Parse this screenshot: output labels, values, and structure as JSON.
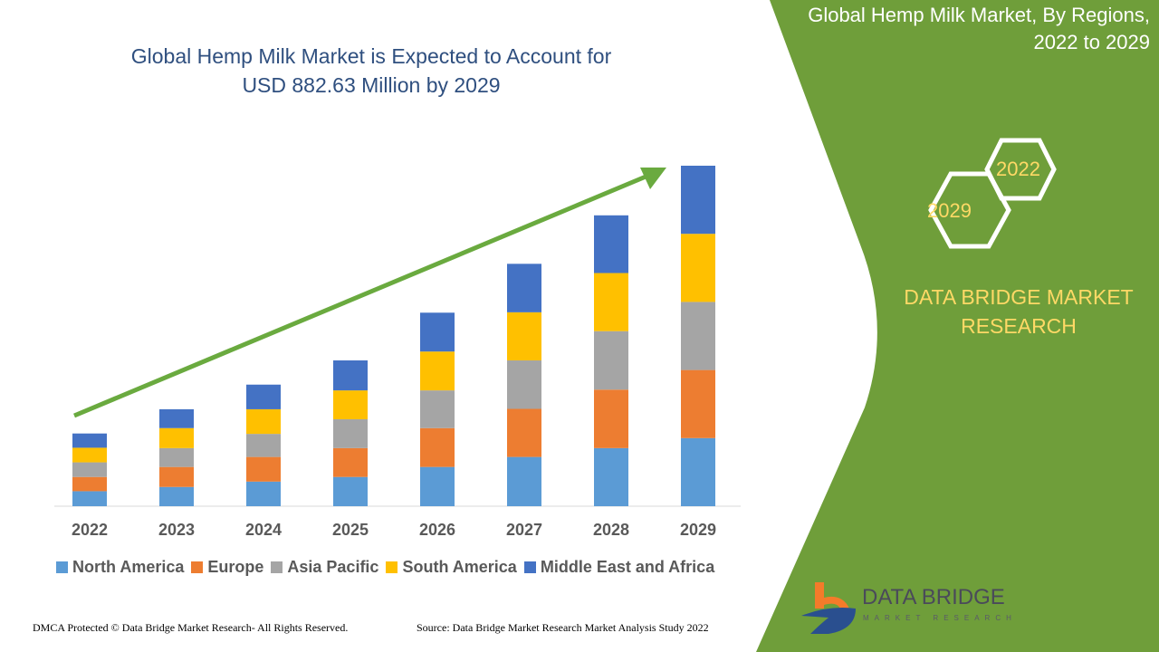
{
  "header": {
    "title_line1": "Global Hemp Milk Market is Expected to Account for",
    "title_line2": "USD 882.63 Million by 2029"
  },
  "side_panel": {
    "title_line1": "Global Hemp Milk Market, By Regions,",
    "title_line2": "2022 to 2029",
    "hex_a": "2022",
    "hex_b": "2029",
    "brand_line1": "DATA BRIDGE MARKET",
    "brand_line2": "RESEARCH",
    "logo": "DATA BRIDGE",
    "logo_sub": "MARKET RESEARCH"
  },
  "footer": {
    "left": "DMCA Protected © Data Bridge Market Research- All Rights Reserved.",
    "right": "Source: Data Bridge Market Research Market Analysis Study 2022"
  },
  "colors": {
    "panel": "#6f9e3a",
    "arrow": "#6aaa3f",
    "title": "#2f4f7f",
    "brand_text": "#ffd966"
  },
  "chart_data": {
    "type": "bar",
    "stacked": true,
    "title": "Global Hemp Milk Market is Expected to Account for USD 882.63 Million by 2029",
    "xlabel": "",
    "ylabel": "",
    "grid": false,
    "legend_position": "bottom",
    "trend_arrow": true,
    "categories": [
      "2022",
      "2023",
      "2024",
      "2025",
      "2026",
      "2027",
      "2028",
      "2029"
    ],
    "ylim": [
      0,
      900
    ],
    "series": [
      {
        "name": "North America",
        "color": "#5b9bd5",
        "values": [
          39,
          50,
          64,
          76,
          102,
          128,
          151,
          177
        ]
      },
      {
        "name": "Europe",
        "color": "#ed7d31",
        "values": [
          37,
          52,
          64,
          75,
          101,
          125,
          152,
          177
        ]
      },
      {
        "name": "Asia Pacific",
        "color": "#a5a5a5",
        "values": [
          38,
          49,
          60,
          75,
          98,
          126,
          152,
          177
        ]
      },
      {
        "name": "South America",
        "color": "#ffc000",
        "values": [
          38,
          52,
          64,
          75,
          101,
          125,
          151,
          177
        ]
      },
      {
        "name": "Middle East and Africa",
        "color": "#4472c4",
        "values": [
          37,
          49,
          64,
          78,
          101,
          126,
          150,
          177
        ]
      }
    ]
  }
}
